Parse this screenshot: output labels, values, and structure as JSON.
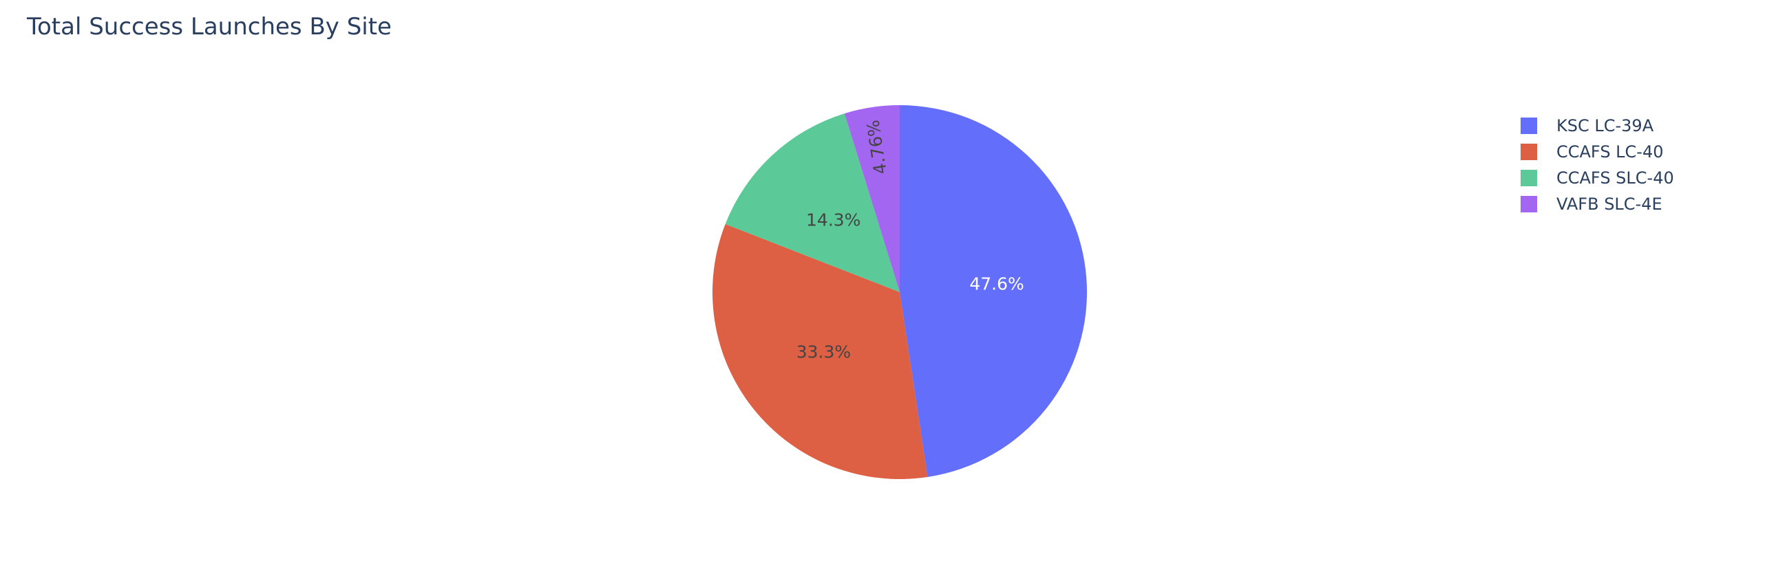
{
  "chart_data": {
    "type": "pie",
    "title": "Total Success Launches By Site",
    "legend_position": "top-right",
    "labels": [
      "KSC LC-39A",
      "CCAFS LC-40",
      "CCAFS SLC-40",
      "VAFB SLC-4E"
    ],
    "percent_labels": [
      "47.6%",
      "33.3%",
      "14.3%",
      "4.76%"
    ],
    "values": [
      47.6,
      33.3,
      14.3,
      4.76
    ],
    "colors": [
      "#636efa",
      "#EF553B",
      "#00cc96",
      "#ab63fa"
    ],
    "sort": "descending",
    "direction": "clockwise",
    "start_angle_deg": 90
  }
}
